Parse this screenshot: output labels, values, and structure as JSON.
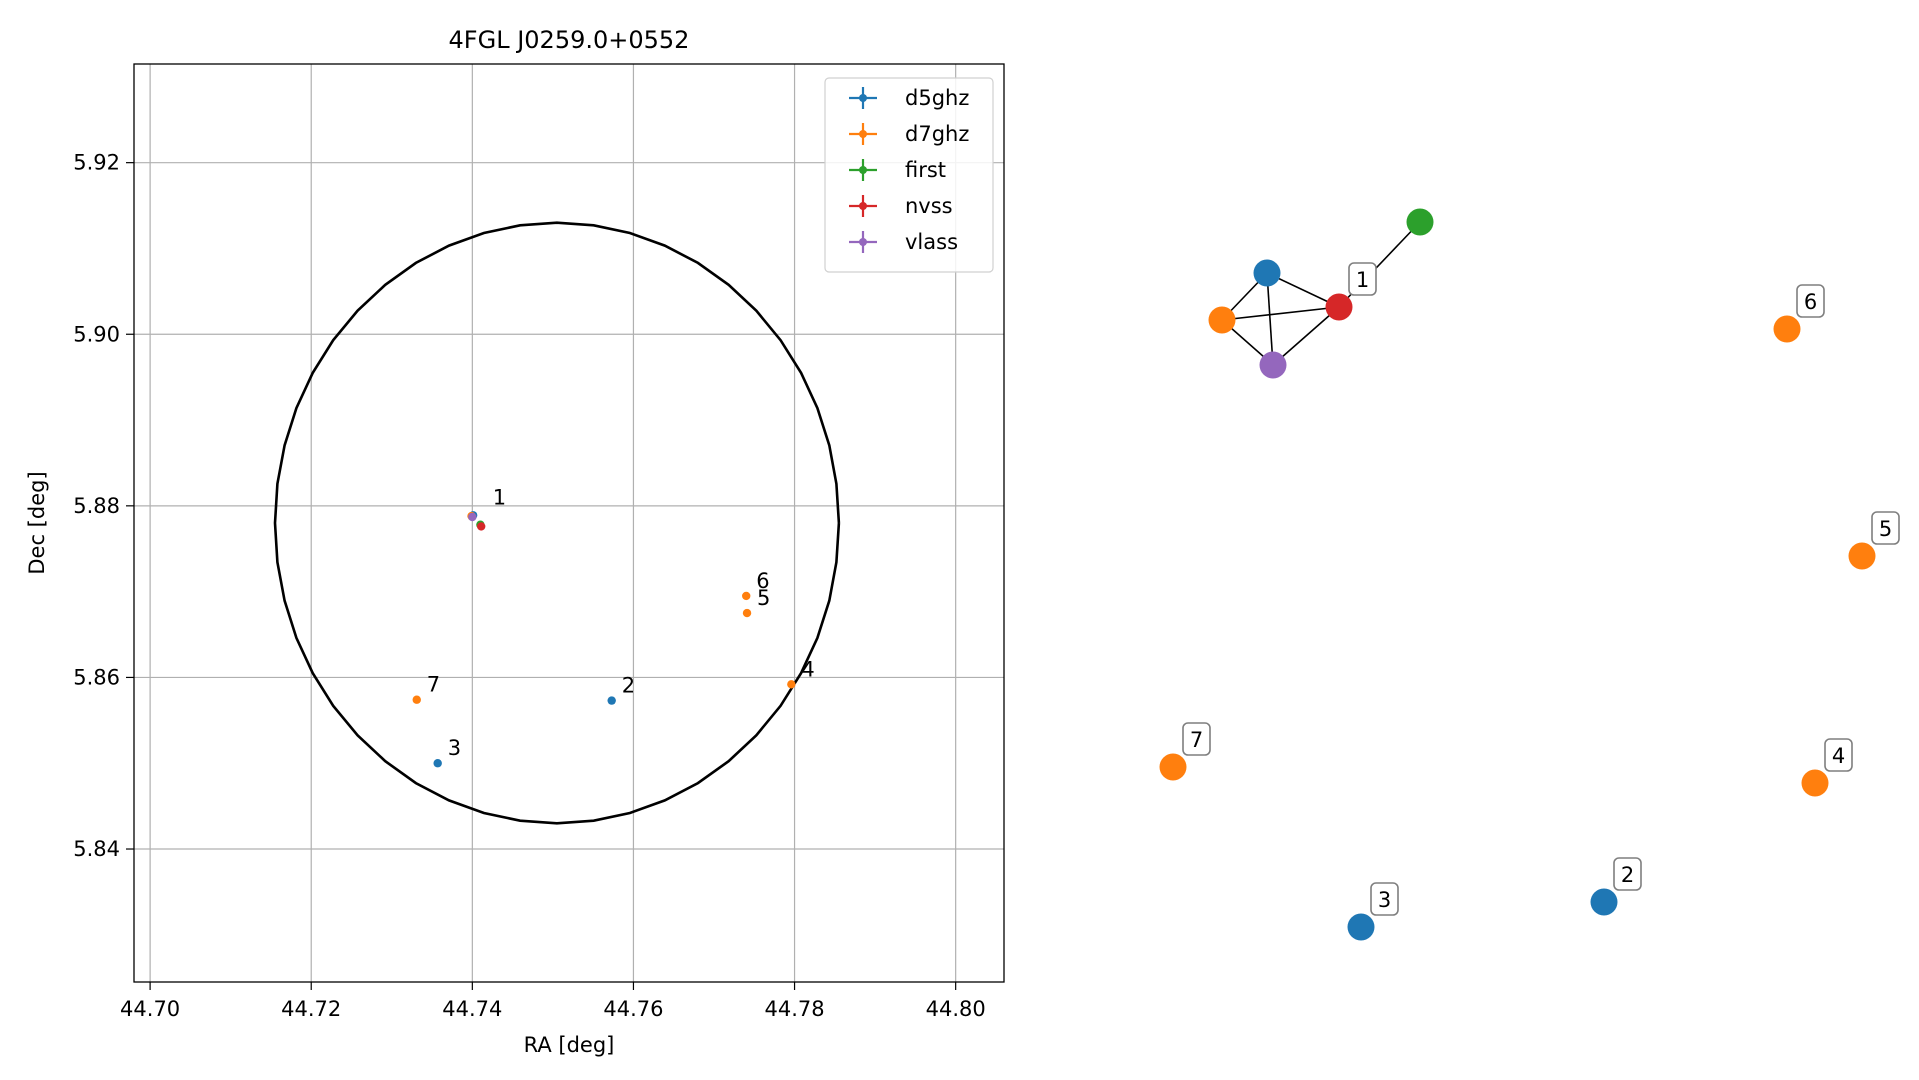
{
  "chart_data": [
    {
      "type": "scatter",
      "title": "4FGL J0259.0+0552",
      "xlabel": "RA [deg]",
      "ylabel": "Dec [deg]",
      "xlim": [
        44.698,
        44.806
      ],
      "ylim": [
        5.8245,
        5.9315
      ],
      "xticks": [
        "44.70",
        "44.72",
        "44.74",
        "44.76",
        "44.78",
        "44.80"
      ],
      "xtick_values": [
        44.7,
        44.72,
        44.74,
        44.76,
        44.78,
        44.8
      ],
      "yticks": [
        "5.84",
        "5.86",
        "5.88",
        "5.90",
        "5.92"
      ],
      "ytick_values": [
        5.84,
        5.86,
        5.88,
        5.9,
        5.92
      ],
      "grid": true,
      "legend_position": "top-right",
      "ellipse": {
        "center": [
          44.7505,
          5.878
        ],
        "semi_axes": [
          0.035,
          0.035
        ],
        "color": "#000000"
      },
      "series": [
        {
          "name": "d5ghz",
          "color": "#1f77b4",
          "points": [
            {
              "x": 44.7401,
              "y": 5.8789
            },
            {
              "x": 44.7573,
              "y": 5.8573
            },
            {
              "x": 44.7357,
              "y": 5.85
            }
          ]
        },
        {
          "name": "d7ghz",
          "color": "#ff7f0e",
          "points": [
            {
              "x": 44.7399,
              "y": 5.8788
            },
            {
              "x": 44.774,
              "y": 5.8695
            },
            {
              "x": 44.7741,
              "y": 5.8675
            },
            {
              "x": 44.7796,
              "y": 5.8592
            },
            {
              "x": 44.7331,
              "y": 5.8574
            }
          ]
        },
        {
          "name": "first",
          "color": "#2ca02c",
          "points": [
            {
              "x": 44.741,
              "y": 5.8778
            }
          ]
        },
        {
          "name": "nvss",
          "color": "#d62728",
          "points": [
            {
              "x": 44.7411,
              "y": 5.8776
            }
          ]
        },
        {
          "name": "vlass",
          "color": "#9467bd",
          "points": [
            {
              "x": 44.74,
              "y": 5.8787
            }
          ]
        }
      ],
      "annotations": [
        {
          "text": "1",
          "x": 44.7413,
          "y": 5.8792
        },
        {
          "text": "2",
          "x": 44.7573,
          "y": 5.8573
        },
        {
          "text": "3",
          "x": 44.7357,
          "y": 5.85
        },
        {
          "text": "4",
          "x": 44.7796,
          "y": 5.8592
        },
        {
          "text": "5",
          "x": 44.7741,
          "y": 5.8675
        },
        {
          "text": "6",
          "x": 44.774,
          "y": 5.8695
        },
        {
          "text": "7",
          "x": 44.7331,
          "y": 5.8574
        }
      ]
    },
    {
      "type": "network",
      "nodes": [
        {
          "id": "d5ghz-1",
          "color": "#1f77b4"
        },
        {
          "id": "d7ghz-1",
          "color": "#ff7f0e"
        },
        {
          "id": "nvss-1",
          "color": "#d62728",
          "label": "1"
        },
        {
          "id": "vlass-1",
          "color": "#9467bd"
        },
        {
          "id": "first-1",
          "color": "#2ca02c"
        },
        {
          "id": "d7ghz-6",
          "color": "#ff7f0e",
          "label": "6"
        },
        {
          "id": "d7ghz-5",
          "color": "#ff7f0e",
          "label": "5"
        },
        {
          "id": "d7ghz-7",
          "color": "#ff7f0e",
          "label": "7"
        },
        {
          "id": "d7ghz-4",
          "color": "#ff7f0e",
          "label": "4"
        },
        {
          "id": "d5ghz-3",
          "color": "#1f77b4",
          "label": "3"
        },
        {
          "id": "d5ghz-2",
          "color": "#1f77b4",
          "label": "2"
        }
      ],
      "edges": [
        [
          "d5ghz-1",
          "d7ghz-1"
        ],
        [
          "d5ghz-1",
          "nvss-1"
        ],
        [
          "d5ghz-1",
          "vlass-1"
        ],
        [
          "d7ghz-1",
          "nvss-1"
        ],
        [
          "d7ghz-1",
          "vlass-1"
        ],
        [
          "vlass-1",
          "nvss-1"
        ],
        [
          "nvss-1",
          "first-1"
        ]
      ]
    }
  ]
}
